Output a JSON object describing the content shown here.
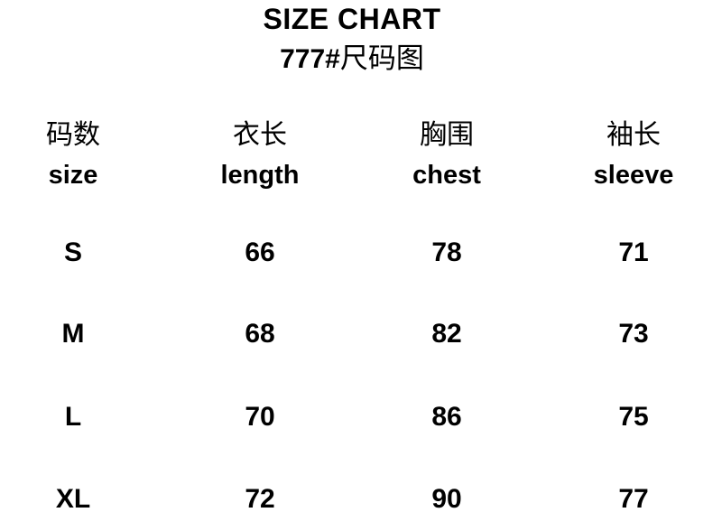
{
  "title": "SIZE CHART",
  "subtitle": {
    "style_number": "777#",
    "label_cjk": "尺码图"
  },
  "chart_data": {
    "type": "table",
    "title": "SIZE CHART",
    "subtitle": "777#尺码图",
    "columns": [
      {
        "zh": "码数",
        "en": "size"
      },
      {
        "zh": "衣长",
        "en": "length"
      },
      {
        "zh": "胸围",
        "en": "chest"
      },
      {
        "zh": "袖长",
        "en": "sleeve"
      }
    ],
    "rows": [
      {
        "size": "S",
        "length": 66,
        "chest": 78,
        "sleeve": 71
      },
      {
        "size": "M",
        "length": 68,
        "chest": 82,
        "sleeve": 73
      },
      {
        "size": "L",
        "length": 70,
        "chest": 86,
        "sleeve": 75
      },
      {
        "size": "XL",
        "length": 72,
        "chest": 90,
        "sleeve": 77
      }
    ]
  },
  "colors": {
    "text": "#000000",
    "background": "#ffffff"
  }
}
